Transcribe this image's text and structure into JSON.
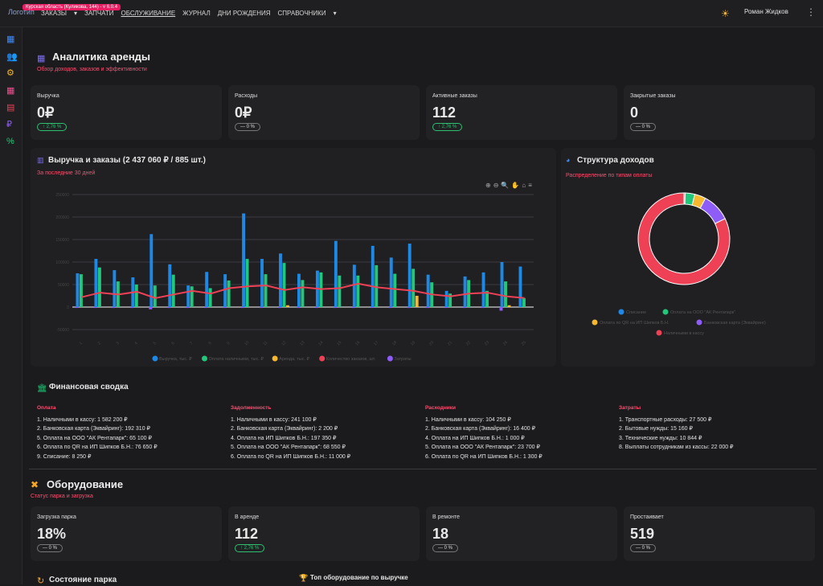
{
  "topbar": {
    "logo": "Логотип",
    "version": "Курская область (Куликова, 144) - v 6.0.4",
    "nav": [
      "ЗАКАЗЫ",
      "ЗАПЧАТИ",
      "ОБСЛУЖИВАНИЕ",
      "ЖУРНАЛ",
      "ДНИ РОЖДЕНИЯ",
      "СПРАВОЧНИКИ"
    ],
    "user": "Роман Жидков"
  },
  "analytics": {
    "title": "Аналитика аренды",
    "subtitle": "Обзор доходов, заказов и эффективности"
  },
  "kpi": [
    {
      "label": "Выручка",
      "value": "0₽",
      "delta": "↑ 2,76 %",
      "up": true
    },
    {
      "label": "Расходы",
      "value": "0₽",
      "delta": "— 0 %",
      "up": false
    },
    {
      "label": "Активные заказы",
      "value": "112",
      "delta": "↑ 2,76 %",
      "up": true
    },
    {
      "label": "Закрытые заказы",
      "value": "0",
      "delta": "— 0 %",
      "up": false
    }
  ],
  "revenue_chart": {
    "title": "Выручка и заказы (2 437 060 ₽ / 885 шт.)",
    "subtitle": "За последние 30 дней"
  },
  "income_chart": {
    "title": "Структура доходов",
    "subtitle": "Распределение по типам оплаты"
  },
  "colors": {
    "blue": "#1e88e5",
    "green": "#21c77a",
    "yellow": "#f5b82e",
    "red": "#ef4155",
    "purple": "#8e5cf7"
  },
  "chart_data": [
    {
      "type": "bar",
      "title": "Выручка и заказы (2 437 060 ₽ / 885 шт.)",
      "ylim": [
        -50000,
        250000
      ],
      "categories": [
        "1",
        "2",
        "3",
        "4",
        "5",
        "6",
        "7",
        "8",
        "9",
        "10",
        "11",
        "12",
        "13",
        "14",
        "15",
        "16",
        "17",
        "18",
        "19",
        "20",
        "21",
        "22",
        "23",
        "24",
        "25"
      ],
      "series": [
        {
          "name": "Выручка, тыс. ₽",
          "values": [
            75000,
            107000,
            82000,
            66000,
            162000,
            95000,
            48000,
            78000,
            73000,
            208000,
            107000,
            119000,
            74000,
            81000,
            147000,
            94000,
            136000,
            110000,
            141000,
            72000,
            36000,
            68000,
            77000,
            100000,
            90000
          ]
        },
        {
          "name": "Оплата наличными, тыс. ₽",
          "values": [
            73000,
            88000,
            57000,
            50000,
            48000,
            72000,
            46000,
            42000,
            59000,
            107000,
            73000,
            98000,
            60000,
            77000,
            70000,
            70000,
            93000,
            74000,
            85000,
            55000,
            30000,
            60000,
            36000,
            57000,
            20000
          ]
        },
        {
          "name": "Аренда, тыс. ₽",
          "values": [
            0,
            0,
            0,
            0,
            0,
            0,
            0,
            0,
            0,
            0,
            0,
            4000,
            0,
            0,
            0,
            0,
            0,
            0,
            25000,
            0,
            0,
            0,
            0,
            4000,
            0
          ]
        },
        {
          "name": "Количество заказов, шт.",
          "values": [
            22,
            32,
            28,
            34,
            20,
            28,
            36,
            30,
            42,
            46,
            48,
            38,
            44,
            40,
            42,
            52,
            44,
            40,
            36,
            28,
            24,
            30,
            32,
            24,
            20
          ]
        },
        {
          "name": "Затраты",
          "values": [
            -2000,
            -2000,
            -2000,
            -2000,
            -5000,
            -2000,
            -2000,
            -2000,
            -2000,
            -2000,
            -2000,
            -2000,
            -2000,
            -2000,
            -2000,
            -2000,
            -2000,
            -2000,
            -2000,
            -2000,
            -2000,
            -2000,
            -2000,
            -8000,
            0
          ]
        }
      ]
    },
    {
      "type": "pie",
      "title": "Структура доходов",
      "categories": [
        "Списание",
        "Оплата на ООО \"АК Рентапарк\"",
        "Оплата по QR на ИП Шипков Б.Н.",
        "Банковская карта (Эквайринг)",
        "Наличными в кассу"
      ],
      "values": [
        8250,
        65100,
        76650,
        192310,
        1582200
      ]
    }
  ],
  "finance": {
    "title": "Финансовая сводка",
    "cols": [
      {
        "title": "Оплата",
        "items": [
          "1. Наличными в кассу: 1 582 200 ₽",
          "2. Банковская карта (Эквайринг): 192 310 ₽",
          "5. Оплата на ООО \"АК Рентапарк\": 65 100 ₽",
          "6. Оплата по QR на ИП Шипков Б.Н.: 76 650 ₽",
          "9. Списание: 8 250 ₽"
        ]
      },
      {
        "title": "Задолженность",
        "items": [
          "1. Наличными в кассу: 241 100 ₽",
          "2. Банковская карта (Эквайринг): 2 200 ₽",
          "4. Оплата на ИП Шипков Б.Н.: 197 350 ₽",
          "5. Оплата на ООО \"АК Рентапарк\": 68 550 ₽",
          "6. Оплата по QR на ИП Шипков Б.Н.: 11 000 ₽"
        ]
      },
      {
        "title": "Расходники",
        "items": [
          "1. Наличными в кассу: 104 250 ₽",
          "2. Банковская карта (Эквайринг): 16 400 ₽",
          "4. Оплата на ИП Шипков Б.Н.: 1 000 ₽",
          "5. Оплата на ООО \"АК Рентапарк\": 23 700 ₽",
          "6. Оплата по QR на ИП Шипков Б.Н.: 1 300 ₽"
        ]
      },
      {
        "title": "Затраты",
        "items": [
          "1. Транспортные расходы: 27 500 ₽",
          "2. Бытовые нужды: 15 160 ₽",
          "3. Технические нужды: 10 844 ₽",
          "8. Выплаты сотрудникам из кассы: 22 000 ₽"
        ]
      }
    ]
  },
  "equipment": {
    "title": "Оборудование",
    "subtitle": "Статус парка и загрузка",
    "cards": [
      {
        "label": "Загрузка парка",
        "value": "18%",
        "delta": "— 0 %",
        "up": false
      },
      {
        "label": "В аренде",
        "value": "112",
        "delta": "↑ 2,76 %",
        "up": true
      },
      {
        "label": "В ремонте",
        "value": "18",
        "delta": "— 0 %",
        "up": false
      },
      {
        "label": "Простаивает",
        "value": "519",
        "delta": "— 0 %",
        "up": false
      }
    ]
  },
  "park_state": "Состояние парка",
  "top_equipment": "Топ оборудование по выручке"
}
